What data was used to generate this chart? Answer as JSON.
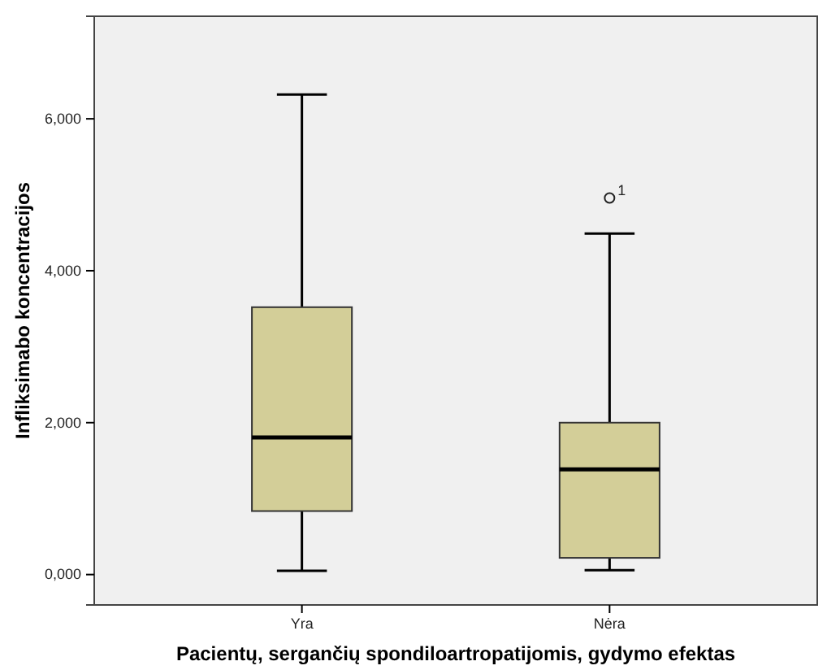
{
  "chart_data": {
    "type": "box",
    "xlabel": "Pacientų, sergančių spondiloartropatijomis, gydymo efektas",
    "ylabel": "Infliksimabo koncentracijos",
    "categories": [
      "Yra",
      "Nėra"
    ],
    "color": "#d3ce98",
    "boxes": [
      {
        "low": 50,
        "q1": 836,
        "median": 1806,
        "q3": 3520,
        "high": 6320
      },
      {
        "low": 57,
        "q1": 220,
        "median": 1385,
        "q3": 2000,
        "high": 4490,
        "outliers": [
          4957
        ]
      }
    ],
    "ylim": [
      -400,
      7350
    ],
    "yticks": [
      {
        "value": 0,
        "label": "0,000"
      },
      {
        "value": 2000,
        "label": "2,000"
      },
      {
        "value": 4000,
        "label": "4,000"
      },
      {
        "value": 6000,
        "label": "6,000"
      }
    ],
    "annotations": [
      "1"
    ],
    "grid": false
  }
}
